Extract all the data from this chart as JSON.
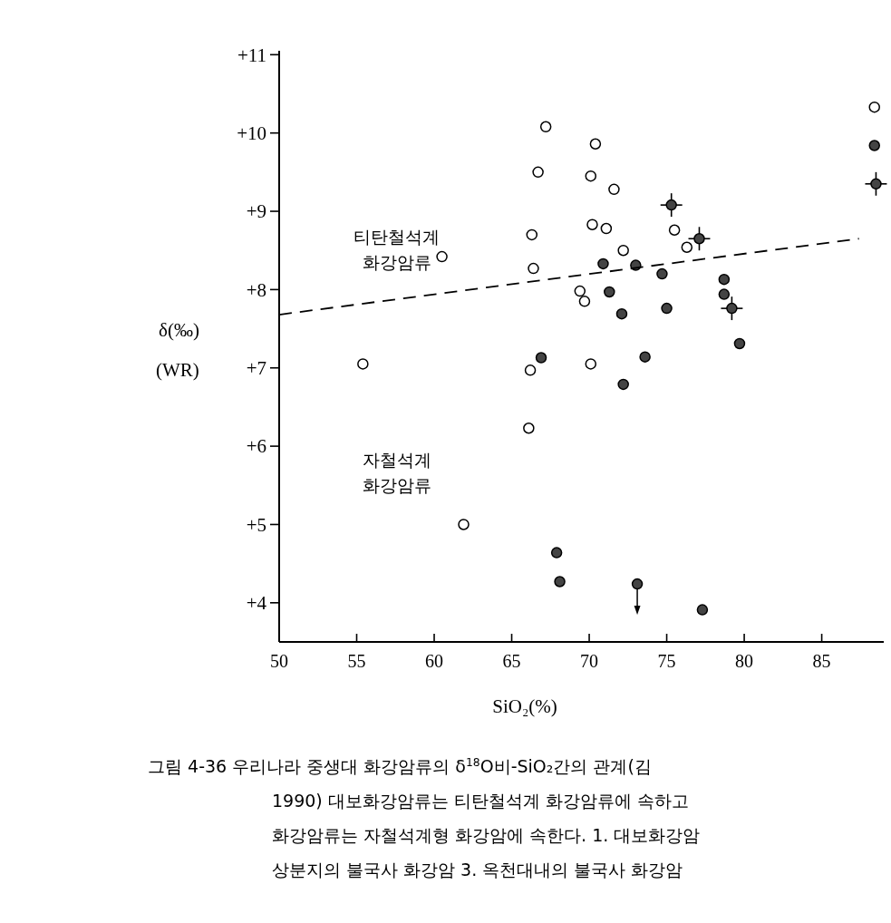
{
  "chart_data": {
    "type": "scatter",
    "xlabel": "SiO₂(%)",
    "ylabel": "δ(‰) (WR)",
    "xlim": [
      50,
      89
    ],
    "ylim": [
      3.5,
      11.05
    ],
    "xticks": [
      50,
      55,
      60,
      65,
      70,
      75,
      80,
      85
    ],
    "yticks": [
      {
        "value": 4,
        "label": "+4"
      },
      {
        "value": 5,
        "label": "+5"
      },
      {
        "value": 6,
        "label": "+6"
      },
      {
        "value": 7,
        "label": "+7"
      },
      {
        "value": 8,
        "label": "+8"
      },
      {
        "value": 9,
        "label": "+9"
      },
      {
        "value": 10,
        "label": "+10"
      },
      {
        "value": 11,
        "label": "+11"
      }
    ],
    "grid": false,
    "marker": "circle",
    "series": [
      {
        "color": "#ffffff",
        "x": [
          55.4,
          60.5,
          61.9,
          67.2,
          66.7,
          66.3,
          66.4,
          66.2,
          66.1,
          70.4,
          70.1,
          71.6,
          70.2,
          71.1,
          72.2,
          69.4,
          69.7,
          70.1,
          75.5,
          76.3,
          88.4
        ],
        "values": [
          7.05,
          8.42,
          5.0,
          10.08,
          9.5,
          8.7,
          8.27,
          6.97,
          6.23,
          9.86,
          9.45,
          9.28,
          8.83,
          8.78,
          8.5,
          7.98,
          7.85,
          7.05,
          8.76,
          8.54,
          10.33
        ]
      },
      {
        "color": "#444444",
        "x": [
          70.9,
          73.0,
          74.7,
          71.3,
          72.1,
          75.0,
          78.7,
          78.7,
          79.7,
          66.9,
          73.6,
          72.2,
          67.9,
          68.1,
          73.1,
          77.3,
          88.4
        ],
        "values": [
          8.33,
          8.31,
          8.2,
          7.97,
          7.69,
          7.76,
          8.13,
          7.94,
          7.31,
          7.13,
          7.14,
          6.79,
          4.64,
          4.27,
          4.24,
          3.91,
          9.84
        ]
      },
      {
        "color": "#444444",
        "x": [
          75.3,
          77.1,
          79.2,
          88.5
        ],
        "values": [
          9.08,
          8.65,
          7.76,
          9.35
        ],
        "errors": [
          0.15,
          0.15,
          0.15,
          0.15
        ],
        "xerrors": [
          0.7,
          0.7,
          0.7,
          0.7
        ]
      },
      {
        "type": "line",
        "color": "#000000",
        "line_style": "dashed",
        "marker": "none",
        "x": [
          50,
          87.4
        ],
        "values": [
          7.68,
          8.65
        ]
      }
    ],
    "annotations": [
      "티탄철석계 화강암류",
      "자철석계 화강암류",
      "그림 4-36 우리나라 중생대 화강암류의 δ$^{18}$O비-SiO₂간의 관계(김",
      "1990) 대보화강암류는 티탄철석계 화강암류에 속하고",
      "화강암류는 자철석계형 화강암에 속한다. 1. 대보화강암",
      "상분지의 불국사 화강암 3. 옥천대내의 불국사 화강암"
    ]
  }
}
